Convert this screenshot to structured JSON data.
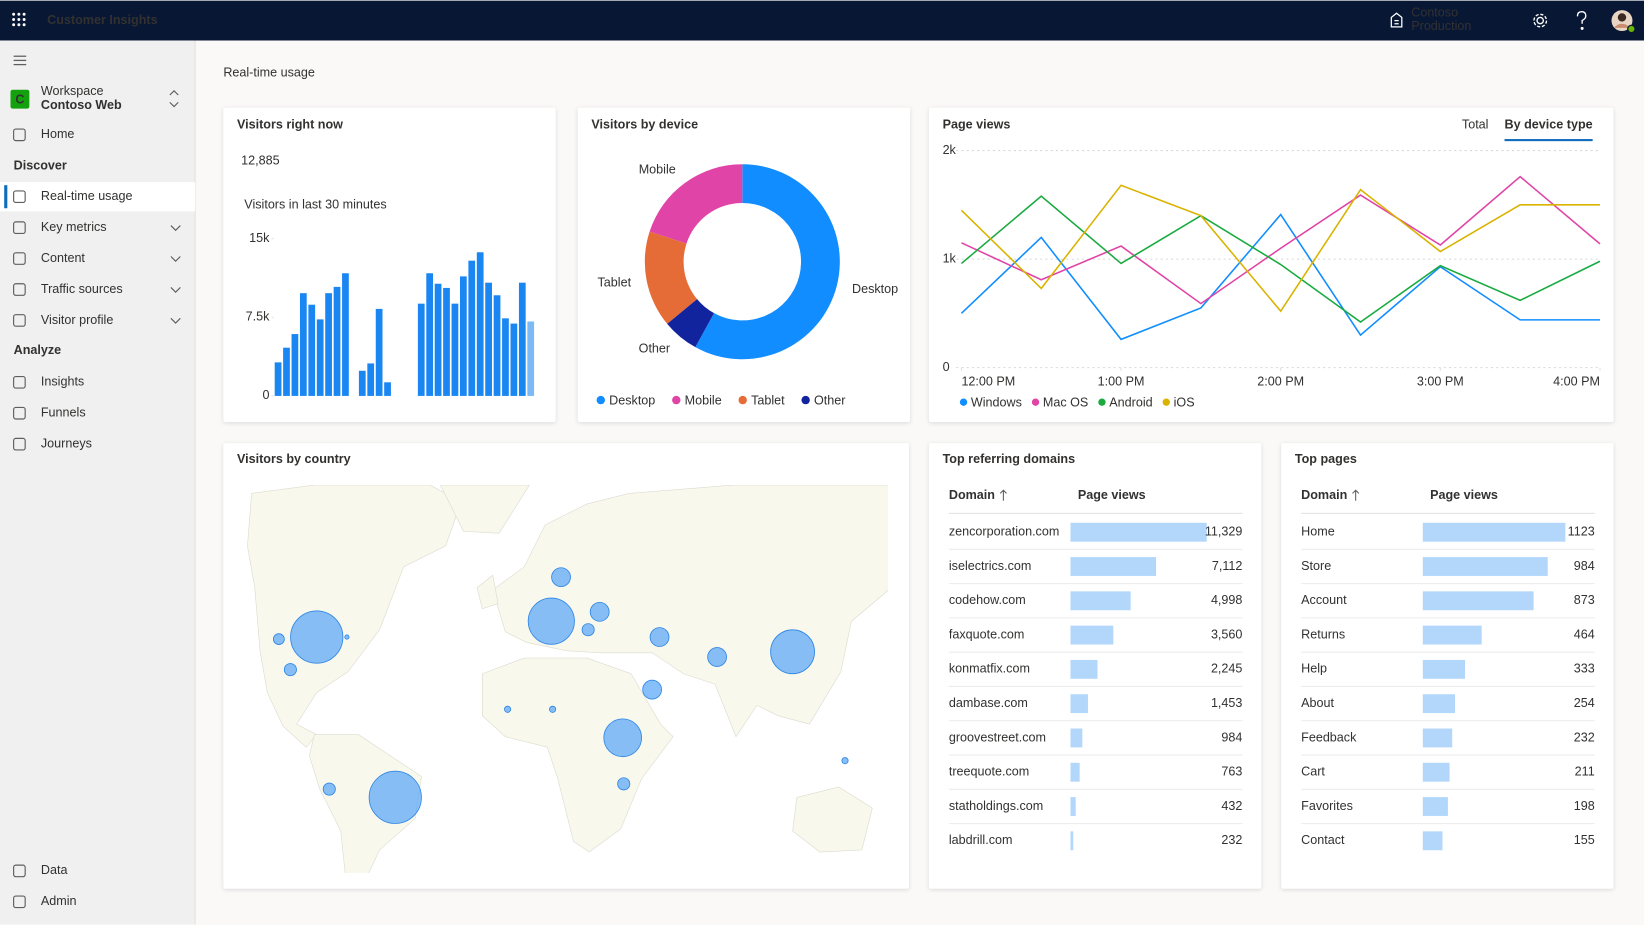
{
  "app": {
    "title": "Customer Insights",
    "org": "Contoso",
    "environment": "Production"
  },
  "nav": {
    "workspace_label": "Workspace",
    "workspace": "Contoso Web",
    "workspace_initial": "C",
    "top": [
      "Home"
    ],
    "discover": {
      "heading": "Discover",
      "items": [
        "Real-time usage",
        "Key metrics",
        "Content",
        "Traffic sources",
        "Visitor profile"
      ],
      "expandable": [
        false,
        true,
        true,
        true,
        true
      ],
      "active_item": 0
    },
    "analyze": {
      "heading": "Analyze",
      "items": [
        "Insights",
        "Funnels",
        "Journeys"
      ]
    },
    "bottom": [
      "Data",
      "Admin"
    ]
  },
  "page_title": "Real-time usage",
  "visitors_now": {
    "title": "Visitors right now",
    "value": "12,885",
    "subtitle": "Visitors in last 30 minutes",
    "chart": {
      "type": "bar",
      "color": "#1a86f2",
      "last_color": "#7cbaf6",
      "values": [
        3200,
        4600,
        5900,
        9800,
        8700,
        7300,
        9800,
        10400,
        11700,
        0,
        2400,
        3100,
        8300,
        1300,
        0,
        0,
        0,
        8800,
        11700,
        10700,
        10300,
        8800,
        11400,
        12900,
        13700,
        10800,
        9600,
        7400,
        6900,
        10800,
        7100
      ],
      "ylim": [
        0,
        15000
      ],
      "yticks": [
        0,
        {
          "value": 7500,
          "label": "7.5k"
        },
        {
          "value": 15000,
          "label": "15k"
        }
      ]
    }
  },
  "device": {
    "title": "Visitors by device",
    "chart": {
      "type": "pie",
      "categories": [
        "Desktop",
        "Mobile",
        "Tablet",
        "Other"
      ],
      "values": [
        58,
        20,
        16,
        6
      ],
      "colors": [
        "#118dff",
        "#e044a7",
        "#e66c37",
        "#12239e"
      ]
    }
  },
  "page_views": {
    "title": "Page views",
    "tabs": [
      "Total",
      "By device type"
    ],
    "active_tab": 1,
    "chart": {
      "type": "line",
      "x": [
        0,
        30,
        60,
        90,
        120,
        150,
        180,
        210,
        240
      ],
      "xlim": [
        0,
        240
      ],
      "xticks": [
        {
          "value": 0,
          "label": "12:00 PM"
        },
        {
          "value": 60,
          "label": "1:00 PM"
        },
        {
          "value": 120,
          "label": "2:00 PM"
        },
        {
          "value": 180,
          "label": "3:00 PM"
        },
        {
          "value": 240,
          "label": "4:00 PM"
        }
      ],
      "ylim": [
        0,
        2000
      ],
      "yticks": [
        0,
        {
          "value": 1000,
          "label": "1k"
        },
        {
          "value": 2000,
          "label": "2k"
        }
      ],
      "grid": true,
      "series": [
        {
          "name": "Windows",
          "color": "#118dff",
          "values": [
            500,
            1200,
            260,
            550,
            1410,
            300,
            930,
            440,
            440
          ]
        },
        {
          "name": "Mac OS",
          "color": "#e044a7",
          "values": [
            1150,
            810,
            1120,
            590,
            1100,
            1590,
            1130,
            1760,
            1140
          ]
        },
        {
          "name": "Android",
          "color": "#1aab40",
          "values": [
            960,
            1580,
            960,
            1400,
            950,
            420,
            940,
            620,
            980
          ]
        },
        {
          "name": "iOS",
          "color": "#d9b300",
          "values": [
            1450,
            730,
            1680,
            1400,
            520,
            1640,
            1070,
            1500,
            1500
          ]
        }
      ]
    }
  },
  "country": {
    "title": "Visitors by country",
    "chart": {
      "type": "scatter",
      "color": "#5ea9f7",
      "x": [
        -80.7,
        -50,
        105.3,
        11,
        38.9,
        14.8,
        29.9,
        53.3,
        50.4,
        75.8,
        25.4,
        -95.5,
        -91,
        -75.8,
        39.3,
        -6.1,
        11.5,
        125.8,
        -68.9
      ],
      "y": [
        42.5,
        -12.1,
        37.5,
        47.9,
        8.2,
        62.9,
        51.1,
        42.5,
        24.6,
        35.7,
        45,
        41.8,
        31.4,
        -9.3,
        -7.5,
        17.9,
        17.9,
        0.4,
        42.5
      ],
      "sizes": [
        92,
        92,
        65,
        72,
        48,
        12,
        12,
        12,
        12,
        12,
        5,
        4,
        5,
        5,
        5,
        1.3,
        1.3,
        1.3,
        0.6
      ]
    }
  },
  "domains": {
    "title": "Top referring domains",
    "columns": [
      "Domain",
      "Page views"
    ],
    "color": "#b3d7fb",
    "rows": [
      "zencorporation.com",
      "iselectrics.com",
      "codehow.com",
      "faxquote.com",
      "konmatfix.com",
      "dambase.com",
      "groovestreet.com",
      "treequote.com",
      "statholdings.com",
      "labdrill.com"
    ],
    "values": [
      11329,
      7112,
      4998,
      3560,
      2245,
      1453,
      984,
      763,
      432,
      232
    ],
    "value_labels": [
      "11,329",
      "7,112",
      "4,998",
      "3,560",
      "2,245",
      "1,453",
      "984",
      "763",
      "432",
      "232"
    ]
  },
  "pages": {
    "title": "Top pages",
    "columns": [
      "Domain",
      "Page views"
    ],
    "color": "#b3d7fb",
    "rows": [
      "Home",
      "Store",
      "Account",
      "Returns",
      "Help",
      "About",
      "Feedback",
      "Cart",
      "Favorites",
      "Contact"
    ],
    "values": [
      1123,
      984,
      873,
      464,
      333,
      254,
      232,
      211,
      198,
      155
    ]
  }
}
